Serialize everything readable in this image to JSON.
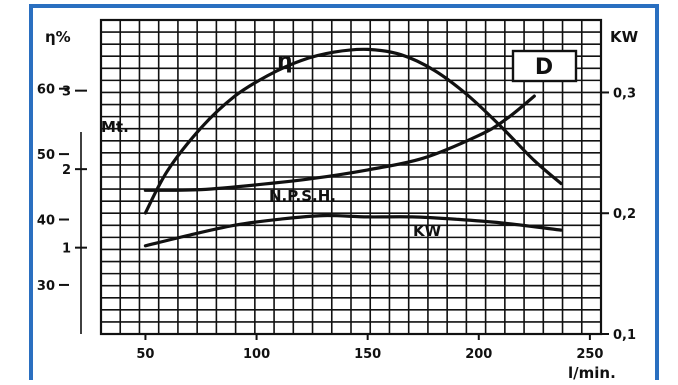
{
  "chart_data": {
    "type": "line",
    "panel_label": "D",
    "x_axis": {
      "label": "l/min.",
      "ticks": [
        50,
        100,
        150,
        200,
        250
      ],
      "range": [
        30,
        255
      ]
    },
    "y_axes": [
      {
        "id": "eta",
        "label": "η%",
        "ticks": [
          30,
          40,
          50,
          60
        ],
        "range": [
          22.5,
          70.5
        ]
      },
      {
        "id": "mt",
        "label": "Mt.",
        "ticks": [
          1,
          2,
          3
        ],
        "range": [
          -0.1,
          3.9
        ]
      },
      {
        "id": "kw",
        "label": "KW",
        "ticks": [
          "0,1",
          "0,2",
          "0,3"
        ],
        "tick_values": [
          0.1,
          0.2,
          0.3
        ],
        "range": [
          0.1,
          0.36
        ]
      }
    ],
    "grid": true,
    "series": [
      {
        "name": "η",
        "axis": "eta",
        "x": [
          50,
          60,
          75,
          90,
          105,
          120,
          135,
          150,
          165,
          180,
          195,
          210,
          225,
          237
        ],
        "y": [
          41,
          47.5,
          54,
          58.8,
          62,
          64.3,
          65.6,
          66,
          65.2,
          62.8,
          59,
          54.2,
          49,
          45.5
        ]
      },
      {
        "name": "N.P.S.H.",
        "axis": "mt",
        "x": [
          50,
          75,
          100,
          125,
          150,
          175,
          200,
          212,
          225
        ],
        "y": [
          1.73,
          1.74,
          1.8,
          1.88,
          1.99,
          2.14,
          2.43,
          2.63,
          2.93
        ]
      },
      {
        "name": "KW",
        "axis": "kw",
        "x": [
          50,
          70,
          90,
          110,
          130,
          150,
          170,
          190,
          210,
          237
        ],
        "y": [
          0.173,
          0.182,
          0.19,
          0.195,
          0.198,
          0.197,
          0.197,
          0.195,
          0.192,
          0.186
        ]
      }
    ]
  },
  "labels": {
    "eta_curve": "η",
    "npsh_curve": "N.P.S.H.",
    "kw_curve": "KW"
  }
}
